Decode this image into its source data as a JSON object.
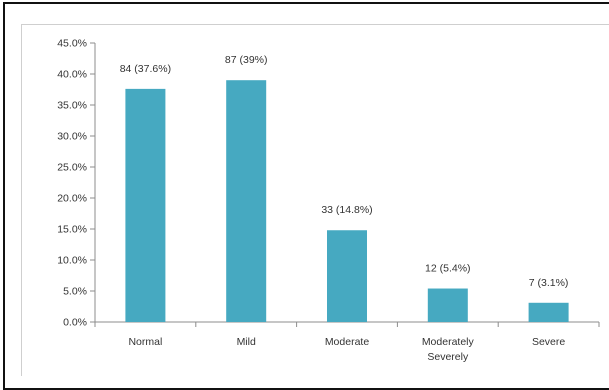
{
  "chart_data": {
    "type": "bar",
    "categories": [
      "Normal",
      "Mild",
      "Moderate",
      "Moderately Severely",
      "Severe"
    ],
    "category_lines": [
      [
        "Normal"
      ],
      [
        "Mild"
      ],
      [
        "Moderate"
      ],
      [
        "Moderately",
        "Severely"
      ],
      [
        "Severe"
      ]
    ],
    "values": [
      37.6,
      39.0,
      14.8,
      5.4,
      3.1
    ],
    "data_labels": [
      "84 (37.6%)",
      "87 (39%)",
      "33 (14.8%)",
      "12 (5.4%)",
      "7 (3.1%)"
    ],
    "y_ticks": [
      "0.0%",
      "5.0%",
      "10.0%",
      "15.0%",
      "20.0%",
      "25.0%",
      "30.0%",
      "35.0%",
      "40.0%",
      "45.0%"
    ],
    "ylim": [
      0,
      45
    ],
    "title": "",
    "xlabel": "",
    "ylabel": "",
    "grid": false,
    "legend": "none",
    "bar_color": "#46a9c1",
    "axis_color": "#8c8c8c"
  }
}
